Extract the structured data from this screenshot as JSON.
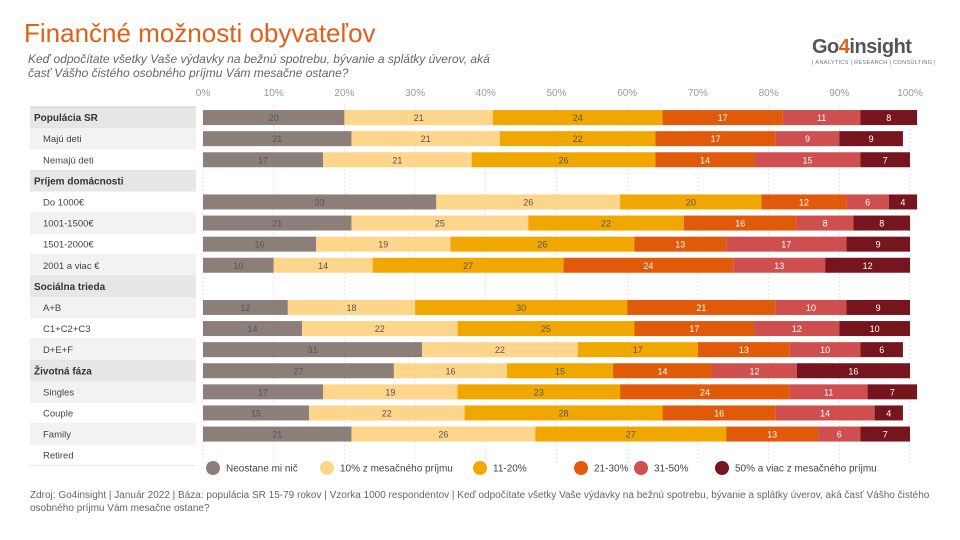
{
  "header": {
    "title": "Finančné možnosti obyvateľov",
    "subtitle": "Keď odpočítate všetky Vaše výdavky na bežnú spotrebu, bývanie a splátky úverov, aká časť Vášho čistého osobného príjmu Vám mesačne ostane?"
  },
  "logo": {
    "main_prefix": "Go",
    "main_digit": "4",
    "main_suffix": "insight",
    "tagline": "| ANALYTICS | RESEARCH | CONSULTING |"
  },
  "footer": {
    "source": "Zdroj: Go4insight | Január 2022 | Báza: populácia SR 15-79 rokov | Vzorka 1000 respondentov | Keď odpočítate všetky Vaše výdavky na bežnú spotrebu, bývanie a splátky úverov, aká časť Vášho čistého osobného príjmu Vám mesačne ostane?"
  },
  "colors": {
    "series": [
      "#8c7f7a",
      "#fdd68c",
      "#f0a800",
      "#e05a0a",
      "#cf4e4e",
      "#76151e"
    ],
    "row_even": "#ffffff",
    "row_odd": "#f2f2f2",
    "category_bg": "#e6e6e6",
    "gridline": "#cccccc",
    "axis_text": "#999999"
  },
  "chart_data": {
    "type": "bar",
    "orientation": "horizontal",
    "stacked": true,
    "xlim": [
      0,
      100
    ],
    "x_ticks": [
      "0%",
      "10%",
      "20%",
      "30%",
      "40%",
      "50%",
      "60%",
      "70%",
      "80%",
      "90%",
      "100%"
    ],
    "legend_position": "bottom",
    "series": [
      {
        "name": "Neostane mi nič"
      },
      {
        "name": "10% z mesačného príjmu"
      },
      {
        "name": "11-20%"
      },
      {
        "name": "21-30%"
      },
      {
        "name": "31-50%"
      },
      {
        "name": "50% a viac z mesačného príjmu"
      }
    ],
    "rows": [
      {
        "label": "Populácia SR",
        "category": true,
        "values": [
          20,
          21,
          24,
          17,
          11,
          8
        ]
      },
      {
        "label": "Majú deti",
        "category": false,
        "values": [
          21,
          21,
          22,
          17,
          9,
          9
        ]
      },
      {
        "label": "Nemajú deti",
        "category": false,
        "values": [
          17,
          21,
          26,
          14,
          15,
          7
        ]
      },
      {
        "label": "Príjem domácnosti",
        "category": true,
        "values": []
      },
      {
        "label": "Do 1000€",
        "category": false,
        "values": [
          33,
          26,
          20,
          12,
          6,
          4
        ]
      },
      {
        "label": "1001-1500€",
        "category": false,
        "values": [
          21,
          25,
          22,
          16,
          8,
          8
        ]
      },
      {
        "label": "1501-2000€",
        "category": false,
        "values": [
          16,
          19,
          26,
          13,
          17,
          9
        ]
      },
      {
        "label": "2001 a viac €",
        "category": false,
        "values": [
          10,
          14,
          27,
          24,
          13,
          12
        ]
      },
      {
        "label": "Sociálna trieda",
        "category": true,
        "values": []
      },
      {
        "label": "A+B",
        "category": false,
        "values": [
          12,
          18,
          30,
          21,
          10,
          9
        ]
      },
      {
        "label": "C1+C2+C3",
        "category": false,
        "values": [
          14,
          22,
          25,
          17,
          12,
          10
        ]
      },
      {
        "label": "D+E+F",
        "category": false,
        "values": [
          31,
          22,
          17,
          13,
          10,
          6
        ]
      },
      {
        "label": "Životná fáza",
        "category": true,
        "values": [
          27,
          16,
          15,
          14,
          12,
          16
        ]
      },
      {
        "label": "Singles",
        "category": false,
        "values": [
          17,
          19,
          23,
          24,
          11,
          7
        ]
      },
      {
        "label": "Couple",
        "category": false,
        "values": [
          15,
          22,
          28,
          16,
          14,
          4
        ]
      },
      {
        "label": "Family",
        "category": false,
        "values": [
          21,
          26,
          27,
          13,
          6,
          7
        ]
      },
      {
        "label": "Retired",
        "category": false,
        "values": []
      }
    ]
  }
}
